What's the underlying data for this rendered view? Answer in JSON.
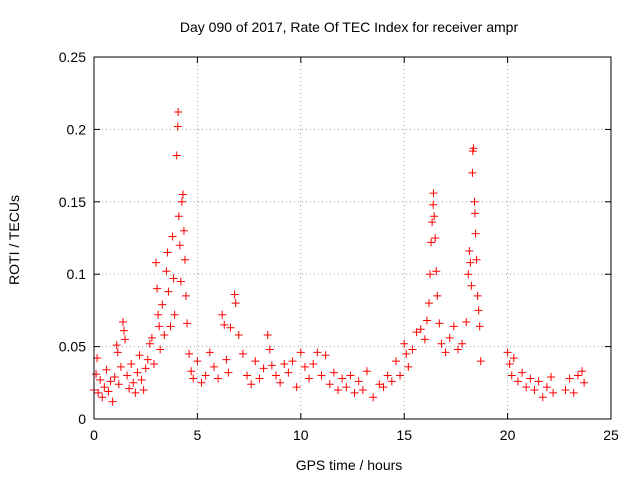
{
  "chart_data": {
    "type": "scatter",
    "title": "Day 090 of 2017, Rate Of TEC Index for receiver ampr",
    "xlabel": "GPS time / hours",
    "ylabel": "ROTI / TECUs",
    "xlim": [
      0,
      25
    ],
    "ylim": [
      0,
      0.25
    ],
    "xticks": [
      "0",
      "5",
      "10",
      "15",
      "20",
      "25"
    ],
    "yticks": [
      "0",
      "0.05",
      "0.1",
      "0.15",
      "0.2",
      "0.25"
    ],
    "grid": true,
    "marker": "+",
    "color": "#ff0000",
    "series": [
      {
        "points": [
          [
            0.0,
            0.02
          ],
          [
            0.1,
            0.031
          ],
          [
            0.15,
            0.042
          ],
          [
            0.2,
            0.018
          ],
          [
            0.3,
            0.027
          ],
          [
            0.4,
            0.015
          ],
          [
            0.5,
            0.022
          ],
          [
            0.6,
            0.034
          ],
          [
            0.7,
            0.019
          ],
          [
            0.8,
            0.026
          ],
          [
            0.9,
            0.012
          ],
          [
            1.0,
            0.029
          ],
          [
            1.1,
            0.051
          ],
          [
            1.15,
            0.046
          ],
          [
            1.2,
            0.024
          ],
          [
            1.3,
            0.036
          ],
          [
            1.4,
            0.067
          ],
          [
            1.45,
            0.061
          ],
          [
            1.5,
            0.055
          ],
          [
            1.6,
            0.03
          ],
          [
            1.7,
            0.021
          ],
          [
            1.8,
            0.038
          ],
          [
            1.9,
            0.025
          ],
          [
            2.0,
            0.018
          ],
          [
            2.1,
            0.032
          ],
          [
            2.2,
            0.044
          ],
          [
            2.3,
            0.027
          ],
          [
            2.4,
            0.02
          ],
          [
            2.5,
            0.035
          ],
          [
            2.6,
            0.041
          ],
          [
            2.7,
            0.052
          ],
          [
            2.8,
            0.056
          ],
          [
            2.9,
            0.038
          ],
          [
            3.0,
            0.108
          ],
          [
            3.05,
            0.09
          ],
          [
            3.1,
            0.072
          ],
          [
            3.15,
            0.064
          ],
          [
            3.2,
            0.048
          ],
          [
            3.3,
            0.079
          ],
          [
            3.4,
            0.058
          ],
          [
            3.5,
            0.102
          ],
          [
            3.55,
            0.115
          ],
          [
            3.6,
            0.088
          ],
          [
            3.7,
            0.064
          ],
          [
            3.8,
            0.126
          ],
          [
            3.85,
            0.097
          ],
          [
            3.9,
            0.072
          ],
          [
            4.0,
            0.182
          ],
          [
            4.05,
            0.202
          ],
          [
            4.07,
            0.212
          ],
          [
            4.1,
            0.14
          ],
          [
            4.15,
            0.12
          ],
          [
            4.2,
            0.095
          ],
          [
            4.25,
            0.15
          ],
          [
            4.3,
            0.155
          ],
          [
            4.35,
            0.13
          ],
          [
            4.4,
            0.11
          ],
          [
            4.45,
            0.085
          ],
          [
            4.5,
            0.066
          ],
          [
            4.6,
            0.045
          ],
          [
            4.7,
            0.033
          ],
          [
            4.8,
            0.028
          ],
          [
            5.0,
            0.04
          ],
          [
            5.2,
            0.025
          ],
          [
            5.4,
            0.03
          ],
          [
            5.6,
            0.046
          ],
          [
            5.8,
            0.036
          ],
          [
            6.0,
            0.028
          ],
          [
            6.2,
            0.072
          ],
          [
            6.3,
            0.065
          ],
          [
            6.4,
            0.041
          ],
          [
            6.5,
            0.032
          ],
          [
            6.6,
            0.063
          ],
          [
            6.8,
            0.086
          ],
          [
            6.85,
            0.08
          ],
          [
            7.0,
            0.058
          ],
          [
            7.2,
            0.045
          ],
          [
            7.4,
            0.03
          ],
          [
            7.6,
            0.024
          ],
          [
            7.8,
            0.04
          ],
          [
            8.0,
            0.028
          ],
          [
            8.2,
            0.035
          ],
          [
            8.4,
            0.058
          ],
          [
            8.5,
            0.048
          ],
          [
            8.6,
            0.037
          ],
          [
            8.8,
            0.03
          ],
          [
            9.0,
            0.025
          ],
          [
            9.2,
            0.038
          ],
          [
            9.4,
            0.032
          ],
          [
            9.6,
            0.04
          ],
          [
            9.8,
            0.022
          ],
          [
            10.0,
            0.046
          ],
          [
            10.2,
            0.036
          ],
          [
            10.4,
            0.028
          ],
          [
            10.6,
            0.038
          ],
          [
            10.8,
            0.046
          ],
          [
            11.0,
            0.03
          ],
          [
            11.2,
            0.044
          ],
          [
            11.4,
            0.024
          ],
          [
            11.6,
            0.032
          ],
          [
            11.8,
            0.02
          ],
          [
            12.0,
            0.028
          ],
          [
            12.2,
            0.022
          ],
          [
            12.4,
            0.03
          ],
          [
            12.6,
            0.018
          ],
          [
            12.8,
            0.026
          ],
          [
            13.0,
            0.02
          ],
          [
            13.2,
            0.033
          ],
          [
            13.5,
            0.015
          ],
          [
            13.8,
            0.024
          ],
          [
            14.0,
            0.022
          ],
          [
            14.2,
            0.03
          ],
          [
            14.4,
            0.026
          ],
          [
            14.6,
            0.04
          ],
          [
            14.8,
            0.03
          ],
          [
            15.0,
            0.052
          ],
          [
            15.1,
            0.045
          ],
          [
            15.2,
            0.036
          ],
          [
            15.4,
            0.048
          ],
          [
            15.6,
            0.06
          ],
          [
            15.8,
            0.062
          ],
          [
            16.0,
            0.055
          ],
          [
            16.1,
            0.068
          ],
          [
            16.2,
            0.08
          ],
          [
            16.25,
            0.1
          ],
          [
            16.3,
            0.122
          ],
          [
            16.35,
            0.136
          ],
          [
            16.4,
            0.148
          ],
          [
            16.42,
            0.156
          ],
          [
            16.45,
            0.14
          ],
          [
            16.5,
            0.125
          ],
          [
            16.55,
            0.102
          ],
          [
            16.6,
            0.085
          ],
          [
            16.7,
            0.066
          ],
          [
            16.8,
            0.052
          ],
          [
            17.0,
            0.046
          ],
          [
            17.2,
            0.056
          ],
          [
            17.4,
            0.064
          ],
          [
            17.6,
            0.048
          ],
          [
            17.8,
            0.052
          ],
          [
            18.0,
            0.067
          ],
          [
            18.1,
            0.1
          ],
          [
            18.15,
            0.116
          ],
          [
            18.2,
            0.108
          ],
          [
            18.25,
            0.092
          ],
          [
            18.3,
            0.17
          ],
          [
            18.32,
            0.185
          ],
          [
            18.35,
            0.187
          ],
          [
            18.4,
            0.15
          ],
          [
            18.42,
            0.142
          ],
          [
            18.45,
            0.128
          ],
          [
            18.5,
            0.11
          ],
          [
            18.55,
            0.085
          ],
          [
            18.6,
            0.075
          ],
          [
            18.65,
            0.064
          ],
          [
            18.7,
            0.04
          ],
          [
            20.0,
            0.046
          ],
          [
            20.1,
            0.038
          ],
          [
            20.2,
            0.03
          ],
          [
            20.3,
            0.042
          ],
          [
            20.5,
            0.026
          ],
          [
            20.7,
            0.032
          ],
          [
            20.9,
            0.022
          ],
          [
            21.1,
            0.028
          ],
          [
            21.3,
            0.02
          ],
          [
            21.5,
            0.026
          ],
          [
            21.7,
            0.015
          ],
          [
            21.9,
            0.022
          ],
          [
            22.1,
            0.029
          ],
          [
            22.2,
            0.018
          ],
          [
            22.8,
            0.02
          ],
          [
            23.0,
            0.028
          ],
          [
            23.2,
            0.018
          ],
          [
            23.4,
            0.03
          ],
          [
            23.6,
            0.033
          ],
          [
            23.7,
            0.025
          ]
        ]
      }
    ]
  }
}
